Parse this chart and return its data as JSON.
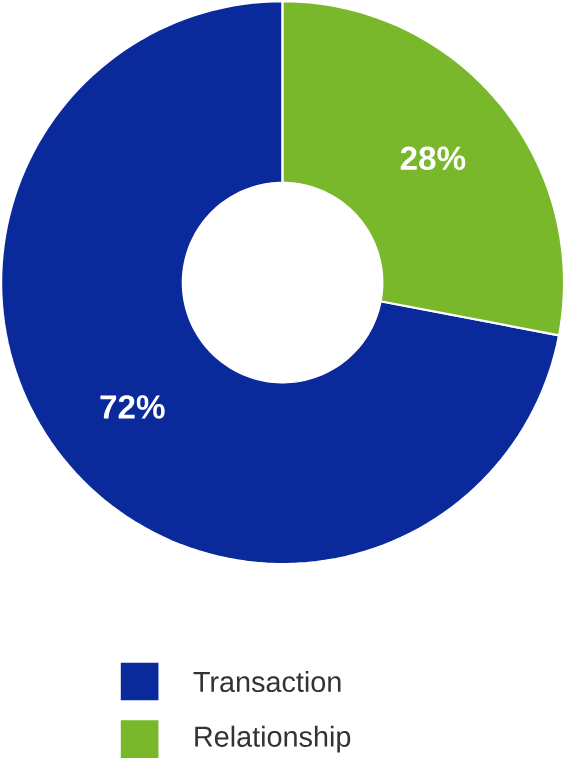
{
  "chart_data": {
    "type": "donut",
    "categories": [
      "Transaction",
      "Relationship"
    ],
    "values": [
      72,
      28
    ],
    "colors": [
      "#0a2a9b",
      "#79b82a"
    ],
    "value_labels": [
      "72%",
      "28%"
    ],
    "legend": "bottom"
  }
}
